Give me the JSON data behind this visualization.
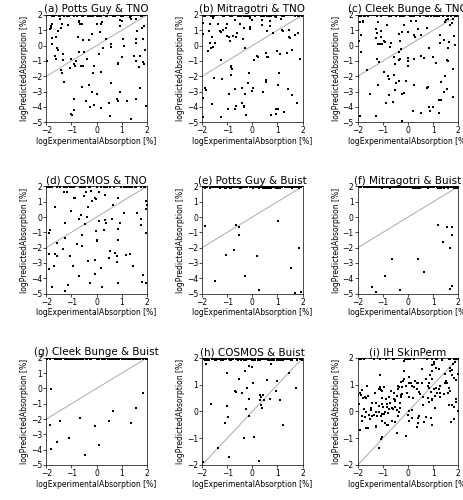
{
  "panels": [
    {
      "label": "(a) Potts Guy & TNO",
      "ylim": [
        -5,
        2
      ],
      "yticks": [
        -5,
        -4,
        -3,
        -2,
        -1,
        0,
        1,
        2
      ]
    },
    {
      "label": "(b) Mitragotri & TNO",
      "ylim": [
        -5,
        2
      ],
      "yticks": [
        -5,
        -4,
        -3,
        -2,
        -1,
        0,
        1,
        2
      ]
    },
    {
      "label": "(c) Cleek Bunge & TNO",
      "ylim": [
        -5,
        2
      ],
      "yticks": [
        -5,
        -4,
        -3,
        -2,
        -1,
        0,
        1,
        2
      ]
    },
    {
      "label": "(d) COSMOS & TNO",
      "ylim": [
        -5,
        2
      ],
      "yticks": [
        -5,
        -4,
        -3,
        -2,
        -1,
        0,
        1,
        2
      ]
    },
    {
      "label": "(e) Potts Guy & Buist",
      "ylim": [
        -5,
        2
      ],
      "yticks": [
        -5,
        -4,
        -3,
        -2,
        -1,
        0,
        1,
        2
      ]
    },
    {
      "label": "(f) Mitragotri & Buist",
      "ylim": [
        -5,
        2
      ],
      "yticks": [
        -5,
        -4,
        -3,
        -2,
        -1,
        0,
        1,
        2
      ]
    },
    {
      "label": "(g) Cleek Bunge & Buist",
      "ylim": [
        -5,
        2
      ],
      "yticks": [
        -5,
        -4,
        -3,
        -2,
        -1,
        0,
        1,
        2
      ]
    },
    {
      "label": "(h) COSMOS & Buist",
      "ylim": [
        -2,
        2
      ],
      "yticks": [
        -2,
        -1,
        0,
        1,
        2
      ]
    },
    {
      "label": "(i) IH SkinPerm",
      "ylim": [
        -2,
        2
      ],
      "yticks": [
        -2,
        -1,
        0,
        1,
        2
      ]
    }
  ],
  "xlim": [
    -2,
    2
  ],
  "xticks": [
    -2,
    -1,
    0,
    1,
    2
  ],
  "xlabel": "logExperimentalAbsorption [%]",
  "ylabel": "logPredictedAbsorption [%]",
  "dot_color": "black",
  "dot_size": 2.5,
  "line_color": "#aaaaaa",
  "background_color": "white",
  "title_fontsize": 7.5,
  "tick_fontsize": 5.5,
  "label_fontsize": 5.5
}
